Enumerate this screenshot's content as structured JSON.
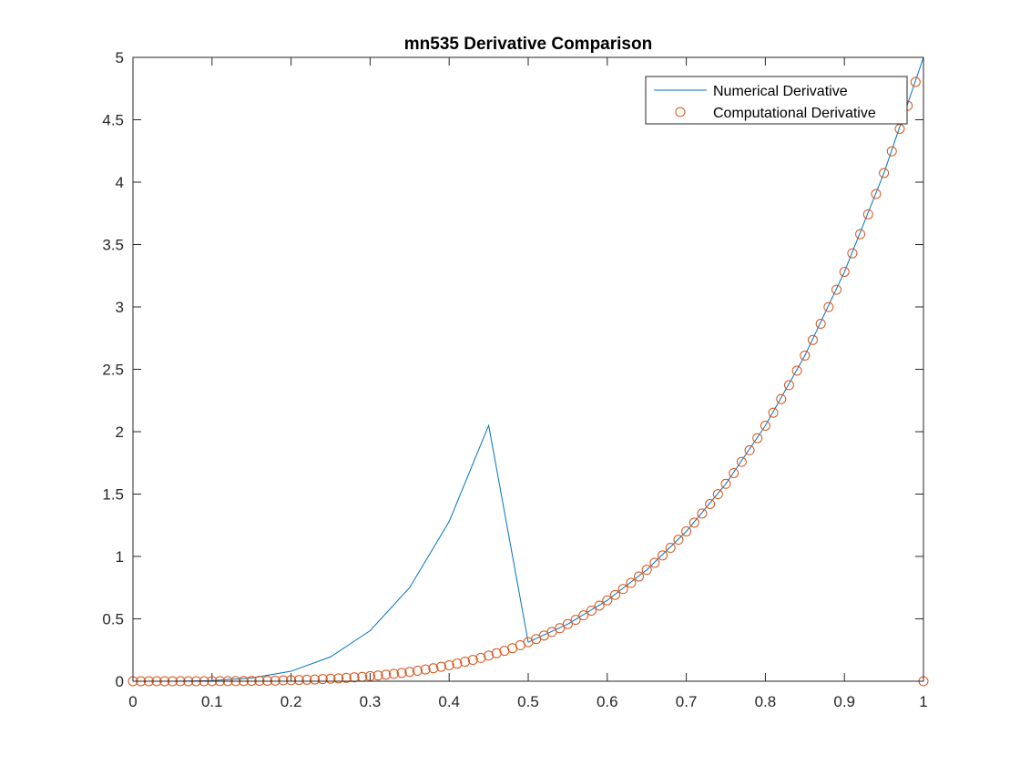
{
  "chart_data": {
    "type": "line",
    "title": "mn535 Derivative Comparison",
    "xlabel": "",
    "ylabel": "",
    "xlim": [
      0,
      1
    ],
    "ylim": [
      0,
      5
    ],
    "xticks": [
      "0",
      "0.1",
      "0.2",
      "0.3",
      "0.4",
      "0.5",
      "0.6",
      "0.7",
      "0.8",
      "0.9",
      "1"
    ],
    "yticks": [
      "0",
      "0.5",
      "1",
      "1.5",
      "2",
      "2.5",
      "3",
      "3.5",
      "4",
      "4.5",
      "5"
    ],
    "grid": false,
    "legend_position": "top-right",
    "series": [
      {
        "name": "Numerical Derivative",
        "kind": "line",
        "color": "#0072BD",
        "x": [
          0,
          0.05,
          0.1,
          0.15,
          0.2,
          0.25,
          0.3,
          0.35,
          0.4,
          0.45,
          0.5,
          0.55,
          0.6,
          0.65,
          0.7,
          0.75,
          0.8,
          0.85,
          0.9,
          0.95,
          1
        ],
        "y": [
          0,
          0.0003,
          0.005,
          0.0253,
          0.08,
          0.1953,
          0.405,
          0.7503,
          1.28,
          2.0503,
          0.3125,
          0.4575,
          0.648,
          0.8925,
          1.2005,
          1.582,
          2.048,
          2.61,
          3.2805,
          4.0725,
          5
        ]
      },
      {
        "name": "Computational Derivative",
        "kind": "markers",
        "marker": "circle",
        "color": "#D95319",
        "x": [
          0,
          0.01,
          0.02,
          0.03,
          0.04,
          0.05,
          0.06,
          0.07,
          0.08,
          0.09,
          0.1,
          0.11,
          0.12,
          0.13,
          0.14,
          0.15,
          0.16,
          0.17,
          0.18,
          0.19,
          0.2,
          0.21,
          0.22,
          0.23,
          0.24,
          0.25,
          0.26,
          0.27,
          0.28,
          0.29,
          0.3,
          0.31,
          0.32,
          0.33,
          0.34,
          0.35,
          0.36,
          0.37,
          0.38,
          0.39,
          0.4,
          0.41,
          0.42,
          0.43,
          0.44,
          0.45,
          0.46,
          0.47,
          0.48,
          0.49,
          0.5,
          0.51,
          0.52,
          0.53,
          0.54,
          0.55,
          0.56,
          0.57,
          0.58,
          0.59,
          0.6,
          0.61,
          0.62,
          0.63,
          0.64,
          0.65,
          0.66,
          0.67,
          0.68,
          0.69,
          0.7,
          0.71,
          0.72,
          0.73,
          0.74,
          0.75,
          0.76,
          0.77,
          0.78,
          0.79,
          0.8,
          0.81,
          0.82,
          0.83,
          0.84,
          0.85,
          0.86,
          0.87,
          0.88,
          0.89,
          0.9,
          0.91,
          0.92,
          0.93,
          0.94,
          0.95,
          0.96,
          0.97,
          0.98,
          0.99,
          1
        ],
        "y": [
          0,
          0,
          0,
          0,
          0,
          0,
          0,
          0,
          0,
          0,
          0.001,
          0.001,
          0.001,
          0.001,
          0.002,
          0.003,
          0.004,
          0.004,
          0.005,
          0.007,
          0.008,
          0.01,
          0.012,
          0.014,
          0.017,
          0.02,
          0.023,
          0.027,
          0.031,
          0.035,
          0.041,
          0.046,
          0.052,
          0.059,
          0.067,
          0.075,
          0.084,
          0.094,
          0.104,
          0.116,
          0.128,
          0.141,
          0.156,
          0.171,
          0.187,
          0.205,
          0.224,
          0.244,
          0.265,
          0.288,
          0.313,
          0.338,
          0.366,
          0.395,
          0.425,
          0.458,
          0.492,
          0.528,
          0.566,
          0.606,
          0.648,
          0.692,
          0.739,
          0.788,
          0.839,
          0.893,
          0.949,
          1.008,
          1.069,
          1.134,
          1.201,
          1.271,
          1.344,
          1.42,
          1.499,
          1.582,
          1.668,
          1.758,
          1.851,
          1.948,
          2.048,
          2.152,
          2.261,
          2.373,
          2.489,
          2.61,
          2.735,
          2.865,
          2.999,
          3.138,
          3.281,
          3.43,
          3.583,
          3.742,
          3.905,
          4.073,
          4.247,
          4.427,
          4.612,
          4.803,
          0
        ]
      }
    ]
  }
}
